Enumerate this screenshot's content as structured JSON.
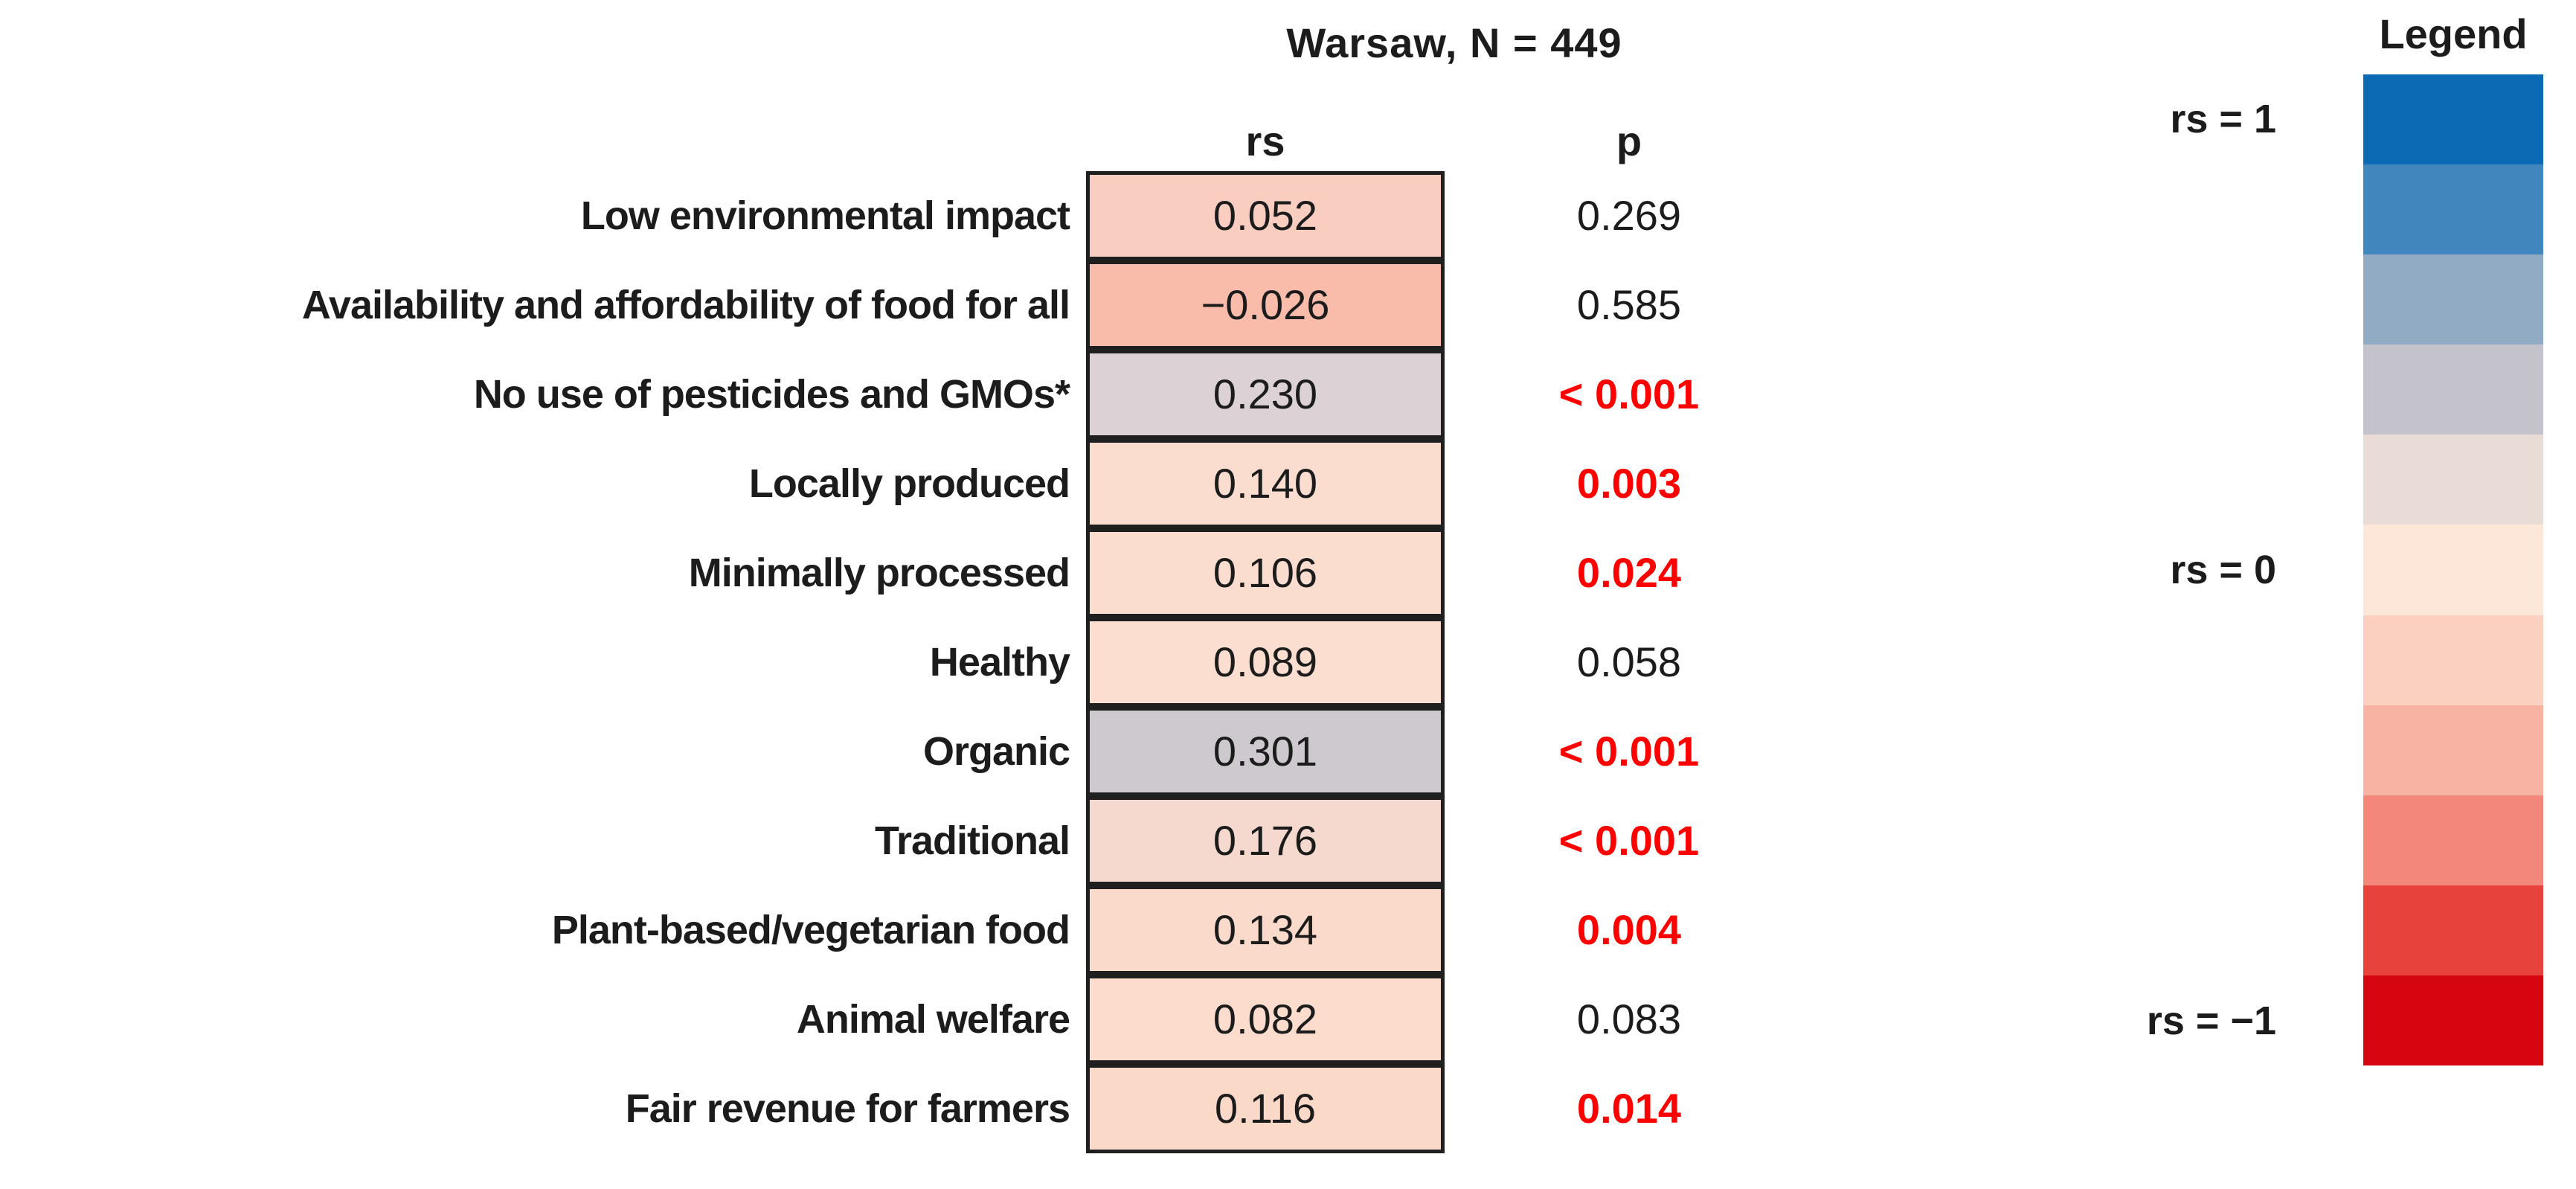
{
  "title": "Warsaw, N = 449",
  "columns": {
    "rs": "rs",
    "p": "p"
  },
  "legend": {
    "title": "Legend",
    "labels": [
      {
        "text": "rs = 1"
      },
      {
        "text": "rs = 0"
      },
      {
        "text": "rs = −1"
      }
    ],
    "colors": [
      "#0c6ab4",
      "#4186bd",
      "#92abc4",
      "#c4c2ca",
      "#e9dbd6",
      "#fce7d9",
      "#fbd0c0",
      "#f8b3a3",
      "#f4877b",
      "#e8423c",
      "#d5060f"
    ]
  },
  "style_colors": {
    "significant_p": "#ff0000",
    "text": "#1c1c1c",
    "cell_border": "#1f1f1f"
  },
  "chart_data": {
    "type": "heatmap",
    "title": "Warsaw, N = 449",
    "group": "Warsaw",
    "n": 449,
    "columns": [
      "rs",
      "p"
    ],
    "legend_scale": {
      "top": "rs = 1",
      "middle": "rs = 0",
      "bottom": "rs = −1"
    },
    "rows": [
      {
        "label": "Low environmental impact",
        "rs_display": "0.052",
        "rs": 0.052,
        "p_display": "0.269",
        "significant": false,
        "cell_color": "#f9cdc0"
      },
      {
        "label": "Availability and affordability of food for all",
        "rs_display": "−0.026",
        "rs": -0.026,
        "p_display": "0.585",
        "significant": false,
        "cell_color": "#f9bcab"
      },
      {
        "label": "No use of pesticides and GMOs*",
        "rs_display": "0.230",
        "rs": 0.23,
        "p_display": "< 0.001",
        "significant": true,
        "cell_color": "#dcd2d5"
      },
      {
        "label": "Locally produced",
        "rs_display": "0.140",
        "rs": 0.14,
        "p_display": "0.003",
        "significant": true,
        "cell_color": "#fbddcf"
      },
      {
        "label": "Minimally processed",
        "rs_display": "0.106",
        "rs": 0.106,
        "p_display": "0.024",
        "significant": true,
        "cell_color": "#fbddd0"
      },
      {
        "label": "Healthy",
        "rs_display": "0.089",
        "rs": 0.089,
        "p_display": "0.058",
        "significant": false,
        "cell_color": "#fcded1"
      },
      {
        "label": "Organic",
        "rs_display": "0.301",
        "rs": 0.301,
        "p_display": "< 0.001",
        "significant": true,
        "cell_color": "#cdc9ce"
      },
      {
        "label": "Traditional",
        "rs_display": "0.176",
        "rs": 0.176,
        "p_display": "< 0.001",
        "significant": true,
        "cell_color": "#f5d9cf"
      },
      {
        "label": "Plant-based/vegetarian food",
        "rs_display": "0.134",
        "rs": 0.134,
        "p_display": "0.004",
        "significant": true,
        "cell_color": "#fadaca"
      },
      {
        "label": "Animal welfare",
        "rs_display": "0.082",
        "rs": 0.082,
        "p_display": "0.083",
        "significant": false,
        "cell_color": "#fbdccd"
      },
      {
        "label": "Fair revenue for farmers",
        "rs_display": "0.116",
        "rs": 0.116,
        "p_display": "0.014",
        "significant": true,
        "cell_color": "#fad9c9"
      }
    ]
  }
}
